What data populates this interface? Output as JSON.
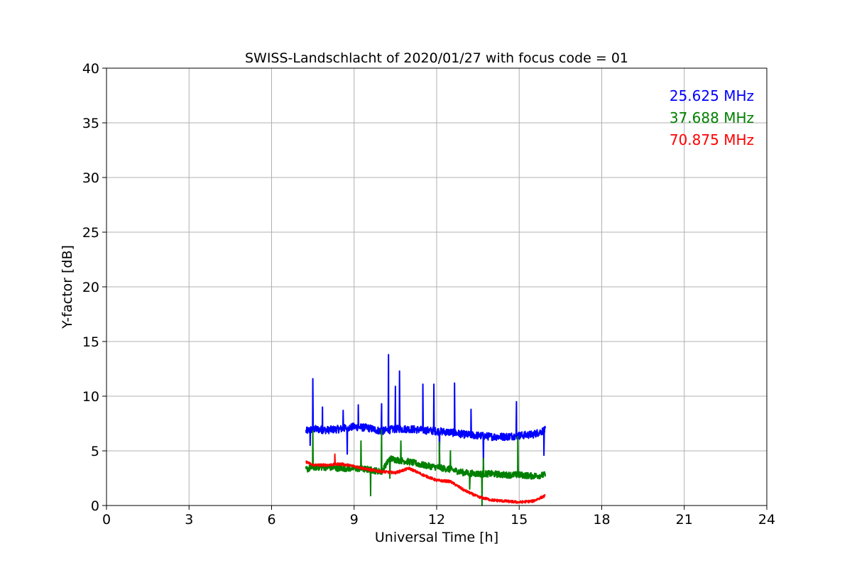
{
  "chart_data": {
    "type": "line",
    "title": "SWISS-Landschlacht of 2020/01/27 with focus code = 01",
    "xlabel": "Universal Time [h]",
    "ylabel": "Y-factor [dB]",
    "xlim": [
      0,
      24
    ],
    "ylim": [
      0,
      40
    ],
    "xticks": [
      "0",
      "3",
      "6",
      "9",
      "12",
      "15",
      "18",
      "21",
      "24"
    ],
    "yticks": [
      "0",
      "5",
      "10",
      "15",
      "20",
      "25",
      "30",
      "35",
      "40"
    ],
    "grid": true,
    "legend_placement": "top-right",
    "series": [
      {
        "name": "25.625 MHz",
        "color": "#0000ff",
        "x": [
          7.25,
          7.5,
          8.0,
          8.5,
          9.0,
          9.5,
          10.0,
          10.5,
          11.0,
          11.5,
          12.0,
          12.5,
          13.0,
          13.5,
          14.0,
          14.5,
          15.0,
          15.5,
          15.95
        ],
        "y": [
          6.8,
          7.0,
          6.9,
          7.0,
          7.2,
          7.1,
          6.8,
          7.0,
          7.0,
          6.9,
          6.8,
          6.7,
          6.5,
          6.4,
          6.3,
          6.3,
          6.4,
          6.5,
          6.9
        ],
        "spikes": [
          [
            7.5,
            11.6
          ],
          [
            7.85,
            9.0
          ],
          [
            8.6,
            8.7
          ],
          [
            9.15,
            9.2
          ],
          [
            10.0,
            9.3
          ],
          [
            10.25,
            13.8
          ],
          [
            10.5,
            10.9
          ],
          [
            10.65,
            12.3
          ],
          [
            11.5,
            11.1
          ],
          [
            11.9,
            11.1
          ],
          [
            12.65,
            11.2
          ],
          [
            13.25,
            8.8
          ],
          [
            14.9,
            9.5
          ]
        ],
        "dips": [
          [
            7.4,
            5.5
          ],
          [
            8.75,
            4.7
          ],
          [
            12.1,
            4.6
          ],
          [
            13.7,
            3.6
          ],
          [
            15.9,
            4.6
          ]
        ]
      },
      {
        "name": "37.688 MHz",
        "color": "#008000",
        "x": [
          7.25,
          7.5,
          8.0,
          8.5,
          9.0,
          9.5,
          10.0,
          10.3,
          10.5,
          11.0,
          11.5,
          12.0,
          12.5,
          13.0,
          13.5,
          14.0,
          14.5,
          15.0,
          15.5,
          15.95
        ],
        "y": [
          3.3,
          3.5,
          3.5,
          3.4,
          3.4,
          3.3,
          3.1,
          4.3,
          4.2,
          4.0,
          3.7,
          3.5,
          3.3,
          3.0,
          2.9,
          2.9,
          2.8,
          2.8,
          2.7,
          2.8
        ],
        "spikes": [
          [
            7.5,
            6.8
          ],
          [
            9.25,
            5.9
          ],
          [
            10.0,
            6.9
          ],
          [
            10.7,
            5.9
          ],
          [
            12.1,
            5.8
          ],
          [
            12.5,
            5.0
          ],
          [
            13.7,
            4.3
          ],
          [
            14.95,
            6.3
          ]
        ],
        "dips": [
          [
            9.6,
            0.9
          ],
          [
            10.3,
            2.5
          ],
          [
            13.2,
            1.5
          ],
          [
            13.65,
            0.0
          ]
        ]
      },
      {
        "name": "70.875 MHz",
        "color": "#ff0000",
        "x": [
          7.25,
          7.5,
          8.0,
          8.5,
          9.0,
          9.5,
          10.0,
          10.5,
          11.0,
          11.5,
          12.0,
          12.5,
          13.0,
          13.5,
          14.0,
          14.5,
          15.0,
          15.5,
          15.95
        ],
        "y": [
          4.0,
          3.7,
          3.7,
          3.8,
          3.6,
          3.3,
          3.1,
          3.0,
          3.4,
          2.8,
          2.3,
          2.2,
          1.4,
          0.8,
          0.5,
          0.4,
          0.3,
          0.4,
          0.9
        ],
        "spikes": [
          [
            8.3,
            4.7
          ]
        ],
        "dips": []
      }
    ]
  }
}
